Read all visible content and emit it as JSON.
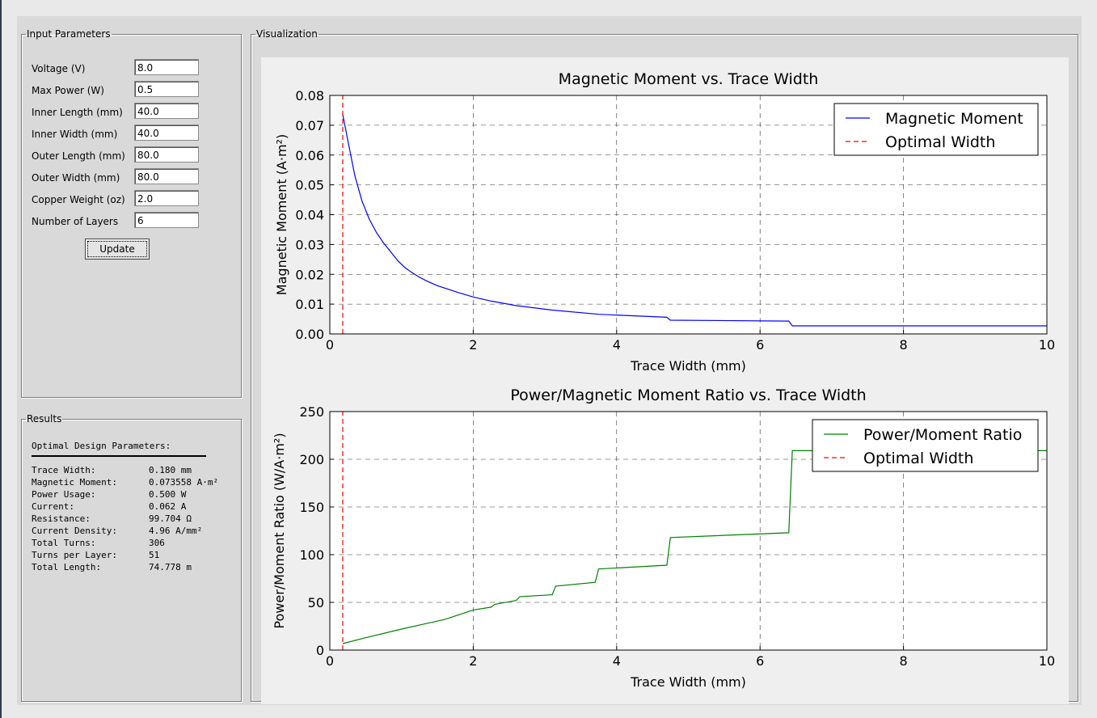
{
  "inputs": {
    "legend": "Input Parameters",
    "fields": [
      {
        "label": "Voltage (V)",
        "value": "8.0"
      },
      {
        "label": "Max Power (W)",
        "value": "0.5"
      },
      {
        "label": "Inner Length (mm)",
        "value": "40.0"
      },
      {
        "label": "Inner Width (mm)",
        "value": "40.0"
      },
      {
        "label": "Outer Length (mm)",
        "value": "80.0"
      },
      {
        "label": "Outer Width (mm)",
        "value": "80.0"
      },
      {
        "label": "Copper Weight (oz)",
        "value": "2.0"
      },
      {
        "label": "Number of Layers",
        "value": "6"
      }
    ],
    "update_label": "Update"
  },
  "results": {
    "legend": "Results",
    "heading": "Optimal Design Parameters:",
    "rows": [
      {
        "key": "Trace Width:",
        "value": "0.180 mm"
      },
      {
        "key": "Magnetic Moment:",
        "value": "0.073558 A·m²"
      },
      {
        "key": "Power Usage:",
        "value": "0.500 W"
      },
      {
        "key": "Current:",
        "value": "0.062 A"
      },
      {
        "key": "Resistance:",
        "value": "99.704 Ω"
      },
      {
        "key": "Current Density:",
        "value": "4.96 A/mm²"
      },
      {
        "key": "Total Turns:",
        "value": "306"
      },
      {
        "key": "Turns per Layer:",
        "value": "51"
      },
      {
        "key": "Total Length:",
        "value": "74.778 m"
      }
    ]
  },
  "visualization": {
    "legend": "Visualization"
  },
  "colors": {
    "moment": "#0000ff",
    "ratio": "#008000",
    "optimal": "#ff0000"
  },
  "chart_data": [
    {
      "type": "line",
      "title": "Magnetic Moment vs. Trace Width",
      "xlabel": "Trace Width (mm)",
      "ylabel": "Magnetic Moment (A·m²)",
      "xlim": [
        0,
        10
      ],
      "ylim": [
        0,
        0.08
      ],
      "xticks": [
        0,
        2,
        4,
        6,
        8,
        10
      ],
      "yticks": [
        0.0,
        0.01,
        0.02,
        0.03,
        0.04,
        0.05,
        0.06,
        0.07,
        0.08
      ],
      "ytick_labels": [
        "0.00",
        "0.01",
        "0.02",
        "0.03",
        "0.04",
        "0.05",
        "0.06",
        "0.07",
        "0.08"
      ],
      "grid": true,
      "legend_position": "top-right",
      "series": [
        {
          "name": "Magnetic Moment",
          "style": "solid",
          "x": [
            0.18,
            0.25,
            0.35,
            0.45,
            0.55,
            0.65,
            0.75,
            0.85,
            0.95,
            1.05,
            1.15,
            1.25,
            1.35,
            1.5,
            1.65,
            1.8,
            2.0,
            2.25,
            2.6,
            3.1,
            3.75,
            4.7,
            4.75,
            6.4,
            6.45,
            10.0
          ],
          "y": [
            0.0736,
            0.065,
            0.053,
            0.0445,
            0.0385,
            0.034,
            0.0305,
            0.0275,
            0.0245,
            0.0222,
            0.0205,
            0.019,
            0.0178,
            0.0162,
            0.015,
            0.0138,
            0.0124,
            0.011,
            0.0095,
            0.008,
            0.0066,
            0.0056,
            0.0046,
            0.0043,
            0.0027,
            0.0027
          ]
        },
        {
          "name": "Optimal Width",
          "style": "dashed",
          "x": [
            0.18,
            0.18
          ],
          "y": [
            0,
            0.08
          ]
        }
      ]
    },
    {
      "type": "line",
      "title": "Power/Magnetic Moment Ratio vs. Trace Width",
      "xlabel": "Trace Width (mm)",
      "ylabel": "Power/Moment Ratio (W/A·m²)",
      "xlim": [
        0,
        10
      ],
      "ylim": [
        0,
        250
      ],
      "xticks": [
        0,
        2,
        4,
        6,
        8,
        10
      ],
      "yticks": [
        0,
        50,
        100,
        150,
        200,
        250
      ],
      "ytick_labels": [
        "0",
        "50",
        "100",
        "150",
        "200",
        "250"
      ],
      "grid": true,
      "legend_position": "top-right",
      "series": [
        {
          "name": "Power/Moment Ratio",
          "style": "solid",
          "x": [
            0.18,
            0.5,
            1.0,
            1.3,
            1.6,
            1.8,
            2.0,
            2.25,
            2.3,
            2.6,
            2.65,
            3.1,
            3.15,
            3.7,
            3.75,
            4.7,
            4.75,
            6.4,
            6.45,
            10.0
          ],
          "y": [
            6.8,
            13,
            22,
            27,
            32,
            37,
            42,
            45,
            48,
            52,
            56,
            58,
            67,
            71,
            85,
            89,
            118,
            123,
            209,
            209
          ]
        },
        {
          "name": "Optimal Width",
          "style": "dashed",
          "x": [
            0.18,
            0.18
          ],
          "y": [
            0,
            250
          ]
        }
      ]
    }
  ]
}
